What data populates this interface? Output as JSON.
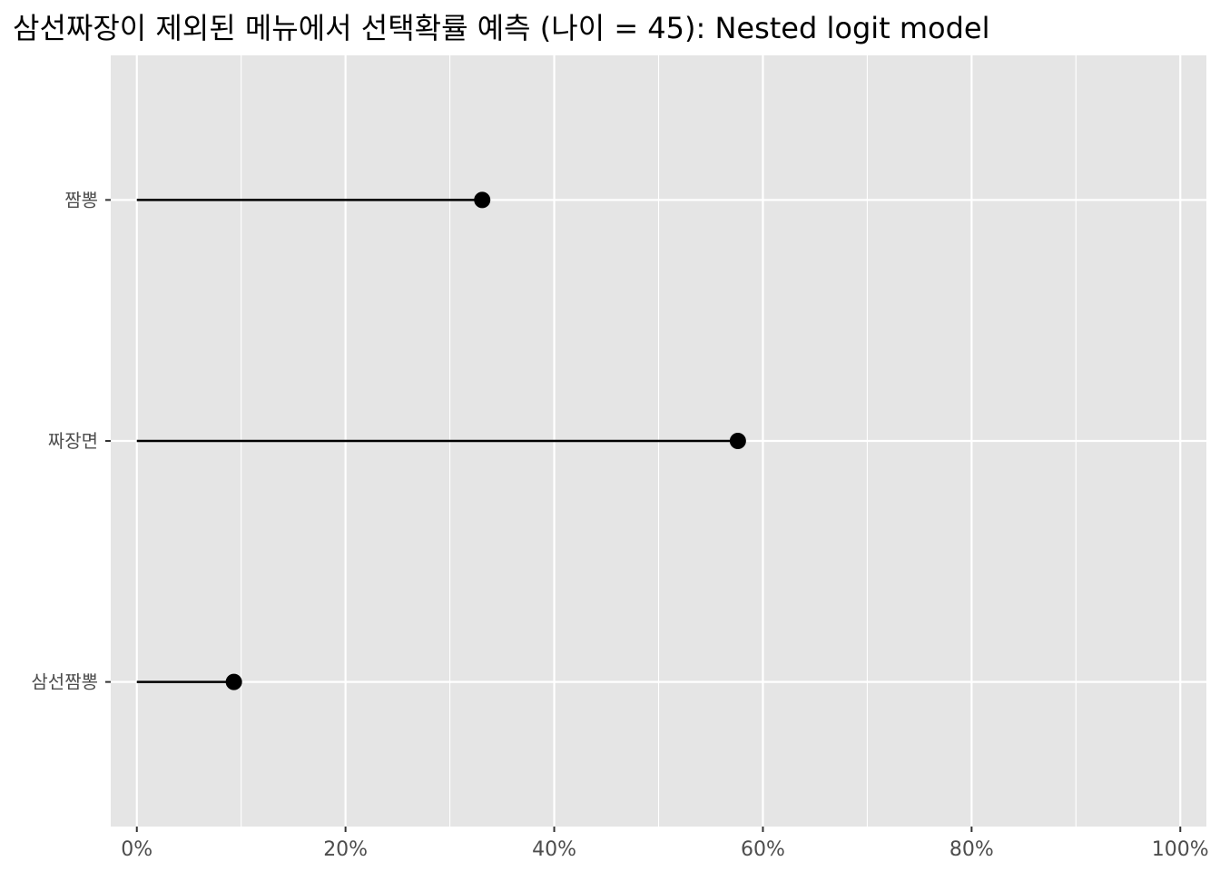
{
  "chart_data": {
    "type": "lollipop",
    "title": "삼선짜장이 제외된 메뉴에서 선택확률 예측 (나이 = 45): Nested logit model",
    "xlabel": "",
    "ylabel": "",
    "xlim": [
      -0.025,
      1.025
    ],
    "x_ticks": [
      0,
      0.2,
      0.4,
      0.6,
      0.8,
      1.0
    ],
    "x_tick_labels": [
      "0%",
      "20%",
      "40%",
      "60%",
      "80%",
      "100%"
    ],
    "categories": [
      "짬뽕",
      "짜장면",
      "삼선짬뽕"
    ],
    "values": [
      0.331,
      0.576,
      0.093
    ],
    "grid": true,
    "panel_background": "#e5e5e5",
    "grid_color": "#ffffff",
    "point_color": "#000000"
  }
}
